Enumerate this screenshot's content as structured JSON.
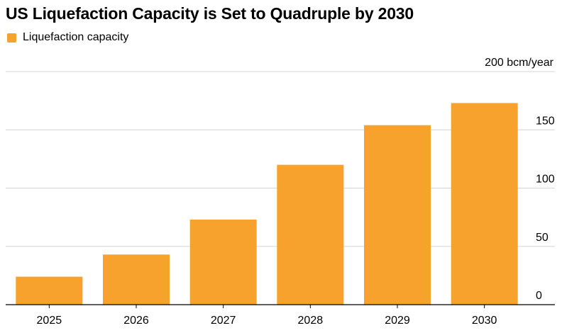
{
  "title": "US Liquefaction Capacity is Set to Quadruple by 2030",
  "legend": {
    "label": "Liquefaction capacity",
    "color": "#f7a22c"
  },
  "chart_data": {
    "type": "bar",
    "title": "US Liquefaction Capacity is Set to Quadruple by 2030",
    "categories": [
      "2025",
      "2026",
      "2027",
      "2028",
      "2029",
      "2030"
    ],
    "series": [
      {
        "name": "Liquefaction capacity",
        "values": [
          24,
          43,
          73,
          120,
          154,
          173
        ]
      }
    ],
    "unit_label": "200 bcm/year",
    "ylim": [
      0,
      200
    ],
    "yticks": [
      0,
      50,
      100,
      150,
      200
    ],
    "ytick_labels": [
      "0",
      "50",
      "100",
      "150",
      "200 bcm/year"
    ],
    "grid": true,
    "legend_position": "top-left",
    "bar_color": "#f7a22c",
    "grid_color": "#d4d4d4"
  }
}
